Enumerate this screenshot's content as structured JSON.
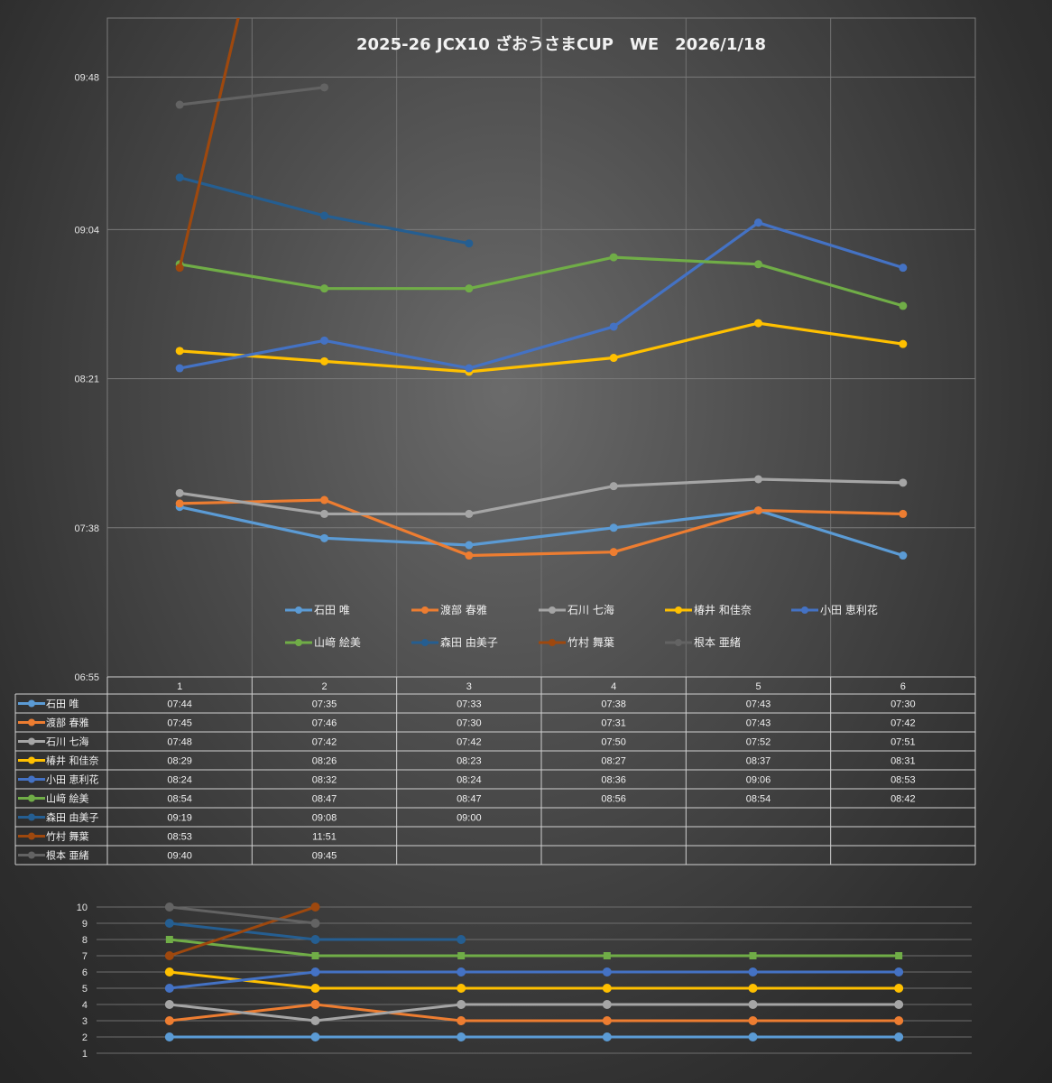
{
  "chart_data": [
    {
      "type": "line",
      "title": "2025-26 JCX10 ざおうさまCUP　WE　2026/1/18",
      "xlabel": "",
      "ylabel": "",
      "categories": [
        "1",
        "2",
        "3",
        "4",
        "5",
        "6"
      ],
      "y_ticks": [
        "09:48",
        "09:04",
        "08:21",
        "07:38",
        "06:55"
      ],
      "ylim": [
        "06:55",
        "10:05"
      ],
      "legend_position": "bottom",
      "series": [
        {
          "name": "石田 唯",
          "color": "#5b9bd5",
          "values": [
            "07:44",
            "07:35",
            "07:33",
            "07:38",
            "07:43",
            "07:30"
          ]
        },
        {
          "name": "渡部 春雅",
          "color": "#ed7d31",
          "values": [
            "07:45",
            "07:46",
            "07:30",
            "07:31",
            "07:43",
            "07:42"
          ]
        },
        {
          "name": "石川 七海",
          "color": "#a5a5a5",
          "values": [
            "07:48",
            "07:42",
            "07:42",
            "07:50",
            "07:52",
            "07:51"
          ]
        },
        {
          "name": "椿井 和佳奈",
          "color": "#ffc000",
          "values": [
            "08:29",
            "08:26",
            "08:23",
            "08:27",
            "08:37",
            "08:31"
          ]
        },
        {
          "name": "小田 恵利花",
          "color": "#4472c4",
          "values": [
            "08:24",
            "08:32",
            "08:24",
            "08:36",
            "09:06",
            "08:53"
          ]
        },
        {
          "name": "山﨑 絵美",
          "color": "#70ad47",
          "values": [
            "08:54",
            "08:47",
            "08:47",
            "08:56",
            "08:54",
            "08:42"
          ]
        },
        {
          "name": "森田 由美子",
          "color": "#255e91",
          "values": [
            "09:19",
            "09:08",
            "09:00",
            "",
            "",
            ""
          ]
        },
        {
          "name": "竹村 舞葉",
          "color": "#9e480e",
          "values": [
            "08:53",
            "11:51",
            "",
            "",
            "",
            ""
          ]
        },
        {
          "name": "根本 亜緒",
          "color": "#636363",
          "values": [
            "09:40",
            "09:45",
            "",
            "",
            "",
            ""
          ]
        }
      ]
    },
    {
      "type": "line",
      "title": "",
      "categories": [
        "1",
        "2",
        "3",
        "4",
        "5",
        "6"
      ],
      "y_ticks": [
        "10",
        "9",
        "8",
        "7",
        "6",
        "5",
        "4",
        "3",
        "2",
        "1"
      ],
      "ylim": [
        1,
        10
      ],
      "series": [
        {
          "name": "石田 唯",
          "color": "#5b9bd5",
          "values": [
            2,
            2,
            2,
            2,
            2,
            2
          ]
        },
        {
          "name": "渡部 春雅",
          "color": "#ed7d31",
          "values": [
            3,
            4,
            3,
            3,
            3,
            3
          ]
        },
        {
          "name": "石川 七海",
          "color": "#a5a5a5",
          "values": [
            4,
            3,
            4,
            4,
            4,
            4
          ]
        },
        {
          "name": "椿井 和佳奈",
          "color": "#ffc000",
          "values": [
            6,
            5,
            5,
            5,
            5,
            5
          ]
        },
        {
          "name": "小田 恵利花",
          "color": "#4472c4",
          "values": [
            5,
            6,
            6,
            6,
            6,
            6
          ]
        },
        {
          "name": "山﨑 絵美",
          "color": "#70ad47",
          "values": [
            8,
            7,
            7,
            7,
            7,
            7
          ]
        },
        {
          "name": "森田 由美子",
          "color": "#255e91",
          "values": [
            9,
            8,
            8,
            null,
            null,
            null
          ]
        },
        {
          "name": "竹村 舞葉",
          "color": "#9e480e",
          "values": [
            7,
            10,
            null,
            null,
            null,
            null
          ]
        },
        {
          "name": "根本 亜緒",
          "color": "#636363",
          "values": [
            10,
            9,
            null,
            null,
            null,
            null
          ]
        }
      ]
    }
  ]
}
